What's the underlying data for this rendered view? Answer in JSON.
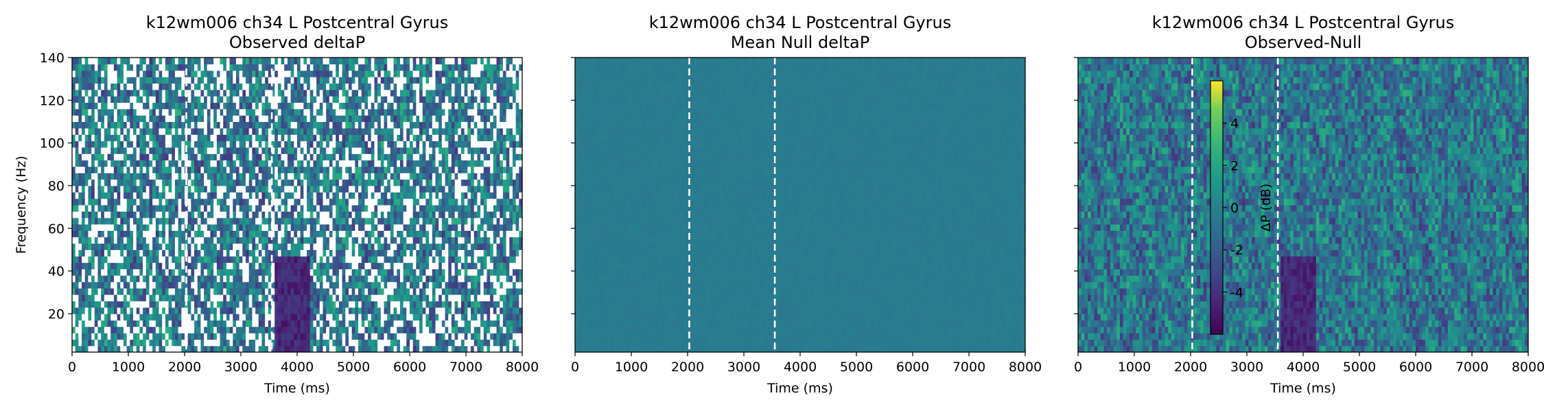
{
  "chart_data": [
    {
      "type": "heatmap",
      "title": "k12wm006 ch34 L Postcentral Gyrus",
      "subtitle": "Observed deltaP",
      "xlabel": "Time (ms)",
      "ylabel": "Frequency (Hz)",
      "xlim": [
        0,
        8000
      ],
      "ylim": [
        2,
        140
      ],
      "xticks": [
        0,
        1000,
        2000,
        3000,
        4000,
        5000,
        6000,
        7000,
        8000
      ],
      "yticks": [
        20,
        40,
        60,
        80,
        100,
        120,
        140
      ],
      "event_lines_ms": [
        2030,
        3550
      ],
      "colormap": "viridis",
      "masked_nonsignificant": true,
      "notable_features": {
        "low_power_region": {
          "time_ms": [
            3600,
            4200
          ],
          "freq_hz": [
            2,
            48
          ],
          "value_db": -5
        }
      }
    },
    {
      "type": "heatmap",
      "title": "k12wm006 ch34 L Postcentral Gyrus",
      "subtitle": "Mean Null deltaP",
      "xlabel": "Time (ms)",
      "ylabel": "",
      "xlim": [
        0,
        8000
      ],
      "ylim": [
        2,
        140
      ],
      "xticks": [
        0,
        1000,
        2000,
        3000,
        4000,
        5000,
        6000,
        7000,
        8000
      ],
      "yticks": [
        20,
        40,
        60,
        80,
        100,
        120,
        140
      ],
      "event_lines_ms": [
        2030,
        3550
      ],
      "colormap": "viridis",
      "approx_value_db": 0
    },
    {
      "type": "heatmap",
      "title": "k12wm006 ch34 L Postcentral Gyrus",
      "subtitle": "Observed-Null",
      "xlabel": "Time (ms)",
      "ylabel": "",
      "xlim": [
        0,
        8000
      ],
      "ylim": [
        2,
        140
      ],
      "xticks": [
        0,
        1000,
        2000,
        3000,
        4000,
        5000,
        6000,
        7000,
        8000
      ],
      "yticks": [
        20,
        40,
        60,
        80,
        100,
        120,
        140
      ],
      "event_lines_ms": [
        2030,
        3550
      ],
      "colormap": "viridis",
      "colorbar": {
        "label": "ΔP (dB)",
        "ticks": [
          -4,
          -2,
          0,
          2,
          4
        ],
        "range": [
          -6,
          6
        ]
      },
      "notable_features": {
        "low_power_region": {
          "time_ms": [
            3600,
            4200
          ],
          "freq_hz": [
            2,
            48
          ],
          "value_db": -5
        }
      }
    }
  ]
}
